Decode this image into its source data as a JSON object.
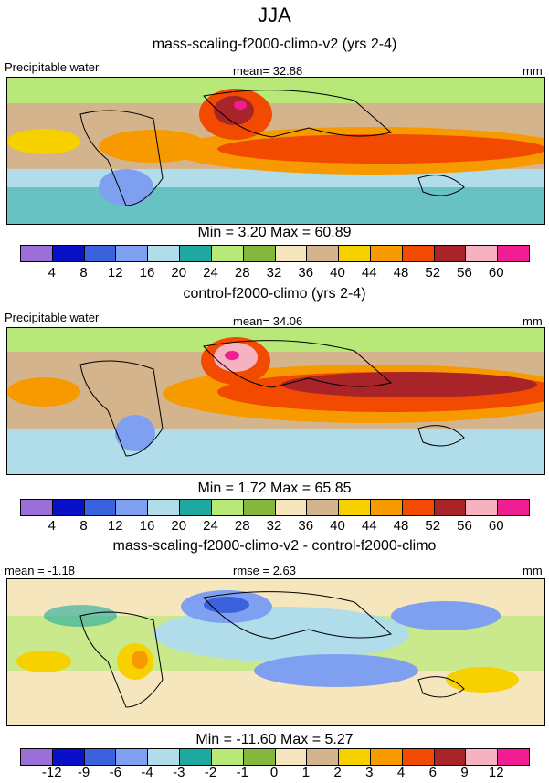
{
  "title": "JJA",
  "panels": [
    {
      "title": "mass-scaling-f2000-climo-v2 (yrs 2-4)",
      "left_label": "Precipitable water",
      "center_label": "mean=  32.88",
      "right_label": "mm",
      "minmax": "Min =   3.20 Max =  60.89",
      "levels": [
        "4",
        "8",
        "12",
        "16",
        "20",
        "24",
        "28",
        "32",
        "36",
        "40",
        "44",
        "48",
        "52",
        "56",
        "60"
      ]
    },
    {
      "title": "control-f2000-climo (yrs 2-4)",
      "left_label": "Precipitable water",
      "center_label": "mean=  34.06",
      "right_label": "mm",
      "minmax": "Min =   1.72 Max =  65.85",
      "levels": [
        "4",
        "8",
        "12",
        "16",
        "20",
        "24",
        "28",
        "32",
        "36",
        "40",
        "44",
        "48",
        "52",
        "56",
        "60"
      ]
    },
    {
      "title": "mass-scaling-f2000-climo-v2 - control-f2000-climo",
      "left_label": "mean =  -1.18",
      "center_label": "rmse =   2.63",
      "right_label": "mm",
      "minmax": "Min = -11.60 Max =   5.27",
      "levels": [
        "-12",
        "-9",
        "-6",
        "-4",
        "-3",
        "-2",
        "-1",
        "0",
        "1",
        "2",
        "3",
        "4",
        "6",
        "9",
        "12"
      ]
    }
  ],
  "colors": [
    "#9a6fd8",
    "#0a10c8",
    "#3a62dc",
    "#7f9ff0",
    "#b0dde9",
    "#1fa8a0",
    "#b8e878",
    "#84b83c",
    "#f5e6bd",
    "#d4b48c",
    "#f7d000",
    "#f79a00",
    "#f24a00",
    "#a82428",
    "#f7b2c2",
    "#f01e92"
  ]
}
